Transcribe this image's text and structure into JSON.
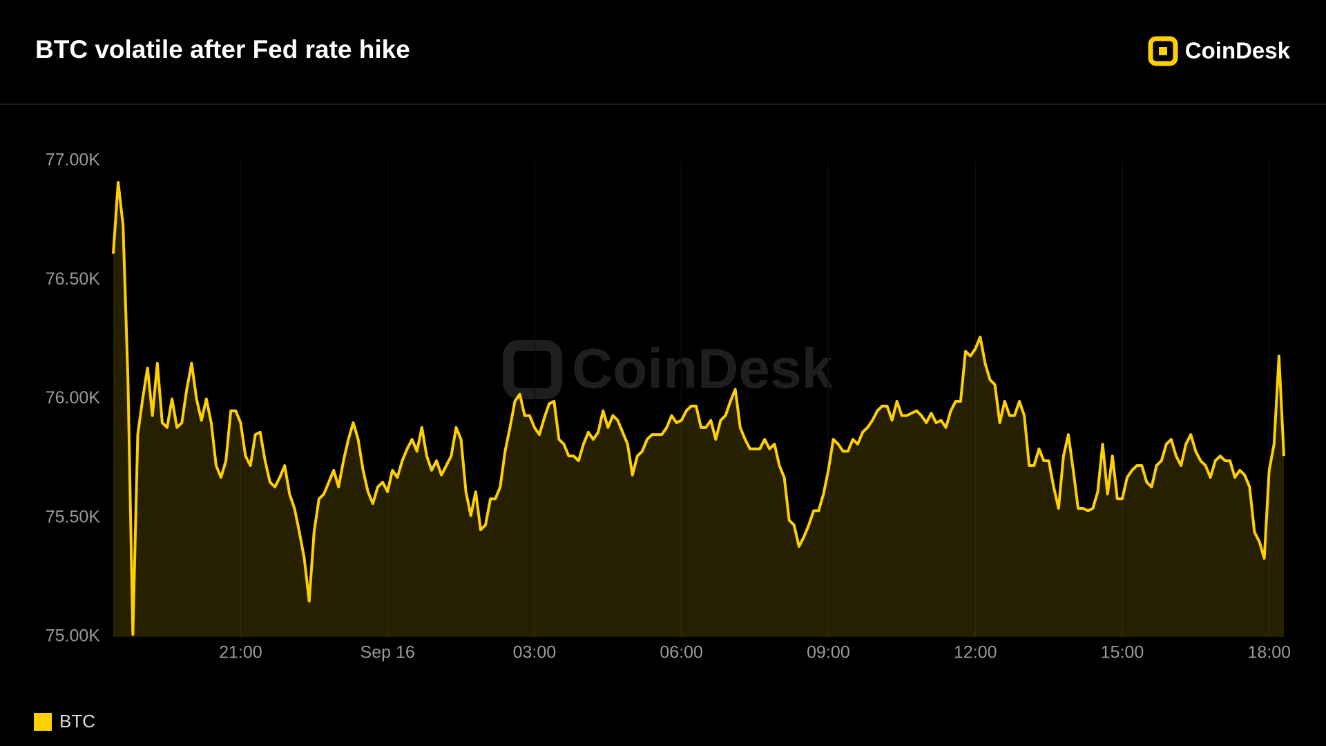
{
  "brand": "CoinDesk",
  "chart_data": {
    "type": "area",
    "title": "BTC volatile after Fed rate hike",
    "categories": [
      null,
      null,
      null,
      null,
      null,
      null,
      null,
      null,
      null,
      null,
      null,
      null,
      null,
      null,
      null,
      null,
      null,
      null,
      null,
      null,
      null,
      null,
      null,
      null,
      null,
      null,
      "21:00",
      null,
      null,
      null,
      null,
      null,
      null,
      null,
      null,
      null,
      null,
      null,
      null,
      null,
      null,
      null,
      null,
      null,
      null,
      null,
      null,
      null,
      null,
      null,
      null,
      null,
      null,
      null,
      null,
      null,
      "Sep 16",
      null,
      null,
      null,
      null,
      null,
      null,
      null,
      null,
      null,
      null,
      null,
      null,
      null,
      null,
      null,
      null,
      null,
      null,
      null,
      null,
      null,
      null,
      null,
      null,
      null,
      null,
      null,
      null,
      null,
      "03:00",
      null,
      null,
      null,
      null,
      null,
      null,
      null,
      null,
      null,
      null,
      null,
      null,
      null,
      null,
      null,
      null,
      null,
      null,
      null,
      null,
      null,
      null,
      null,
      null,
      null,
      null,
      null,
      null,
      null,
      "06:00",
      null,
      null,
      null,
      null,
      null,
      null,
      null,
      null,
      null,
      null,
      null,
      null,
      null,
      null,
      null,
      null,
      null,
      null,
      null,
      null,
      null,
      null,
      null,
      null,
      null,
      null,
      null,
      null,
      null,
      "09:00",
      null,
      null,
      null,
      null,
      null,
      null,
      null,
      null,
      null,
      null,
      null,
      null,
      null,
      null,
      null,
      null,
      null,
      null,
      null,
      null,
      null,
      null,
      null,
      null,
      null,
      null,
      null,
      null,
      null,
      "12:00",
      null,
      null,
      null,
      null,
      null,
      null,
      null,
      null,
      null,
      null,
      null,
      null,
      null,
      null,
      null,
      null,
      null,
      null,
      null,
      null,
      null,
      null,
      null,
      null,
      null,
      null,
      null,
      null,
      null,
      "15:00",
      null,
      null,
      null,
      null,
      null,
      null,
      null,
      null,
      null,
      null,
      null,
      null,
      null,
      null,
      null,
      null,
      null,
      null,
      null,
      null,
      null,
      null,
      null,
      null,
      null,
      null,
      null,
      null,
      null,
      "18:00",
      null,
      null,
      null
    ],
    "series": [
      {
        "name": "BTC",
        "color": "#ffd000",
        "values": [
          76610,
          76910,
          76730,
          76080,
          75010,
          75850,
          76000,
          76130,
          75930,
          76150,
          75900,
          75880,
          76000,
          75880,
          75900,
          76040,
          76150,
          76000,
          75910,
          76000,
          75900,
          75720,
          75670,
          75740,
          75950,
          75950,
          75900,
          75760,
          75720,
          75850,
          75860,
          75740,
          75650,
          75630,
          75670,
          75720,
          75600,
          75540,
          75440,
          75330,
          75150,
          75440,
          75580,
          75600,
          75650,
          75700,
          75630,
          75740,
          75830,
          75900,
          75830,
          75700,
          75610,
          75560,
          75630,
          75650,
          75610,
          75700,
          75670,
          75740,
          75790,
          75830,
          75780,
          75880,
          75760,
          75700,
          75740,
          75680,
          75720,
          75760,
          75880,
          75830,
          75610,
          75510,
          75610,
          75450,
          75470,
          75580,
          75580,
          75630,
          75780,
          75880,
          75990,
          76020,
          75930,
          75930,
          75880,
          75850,
          75920,
          75980,
          75990,
          75830,
          75810,
          75760,
          75760,
          75740,
          75810,
          75860,
          75830,
          75860,
          75950,
          75880,
          75930,
          75910,
          75860,
          75810,
          75680,
          75760,
          75780,
          75830,
          75850,
          75850,
          75850,
          75880,
          75930,
          75900,
          75910,
          75950,
          75970,
          75970,
          75880,
          75880,
          75910,
          75830,
          75910,
          75930,
          75990,
          76040,
          75880,
          75830,
          75790,
          75790,
          75790,
          75830,
          75790,
          75810,
          75720,
          75670,
          75490,
          75470,
          75380,
          75420,
          75470,
          75530,
          75530,
          75600,
          75700,
          75830,
          75810,
          75780,
          75780,
          75830,
          75810,
          75860,
          75880,
          75910,
          75950,
          75970,
          75970,
          75910,
          75990,
          75930,
          75930,
          75940,
          75950,
          75930,
          75900,
          75940,
          75900,
          75910,
          75880,
          75950,
          75990,
          75990,
          76200,
          76180,
          76210,
          76260,
          76150,
          76080,
          76060,
          75900,
          75990,
          75930,
          75930,
          75990,
          75930,
          75720,
          75720,
          75790,
          75740,
          75740,
          75630,
          75540,
          75760,
          75850,
          75700,
          75540,
          75540,
          75530,
          75540,
          75610,
          75810,
          75600,
          75760,
          75580,
          75580,
          75670,
          75700,
          75720,
          75720,
          75650,
          75630,
          75720,
          75740,
          75810,
          75830,
          75760,
          75720,
          75810,
          75850,
          75780,
          75740,
          75720,
          75670,
          75740,
          75760,
          75740,
          75740,
          75670,
          75700,
          75680,
          75630,
          75440,
          75400,
          75330,
          75700,
          75810,
          76180,
          75760
        ]
      }
    ],
    "ylim": [
      75000,
      77000
    ],
    "yticks": [
      {
        "value": 75000,
        "label": "75.00K"
      },
      {
        "value": 75500,
        "label": "75.50K"
      },
      {
        "value": 76000,
        "label": "76.00K"
      },
      {
        "value": 76500,
        "label": "76.50K"
      },
      {
        "value": 77000,
        "label": "77.00K"
      }
    ]
  }
}
